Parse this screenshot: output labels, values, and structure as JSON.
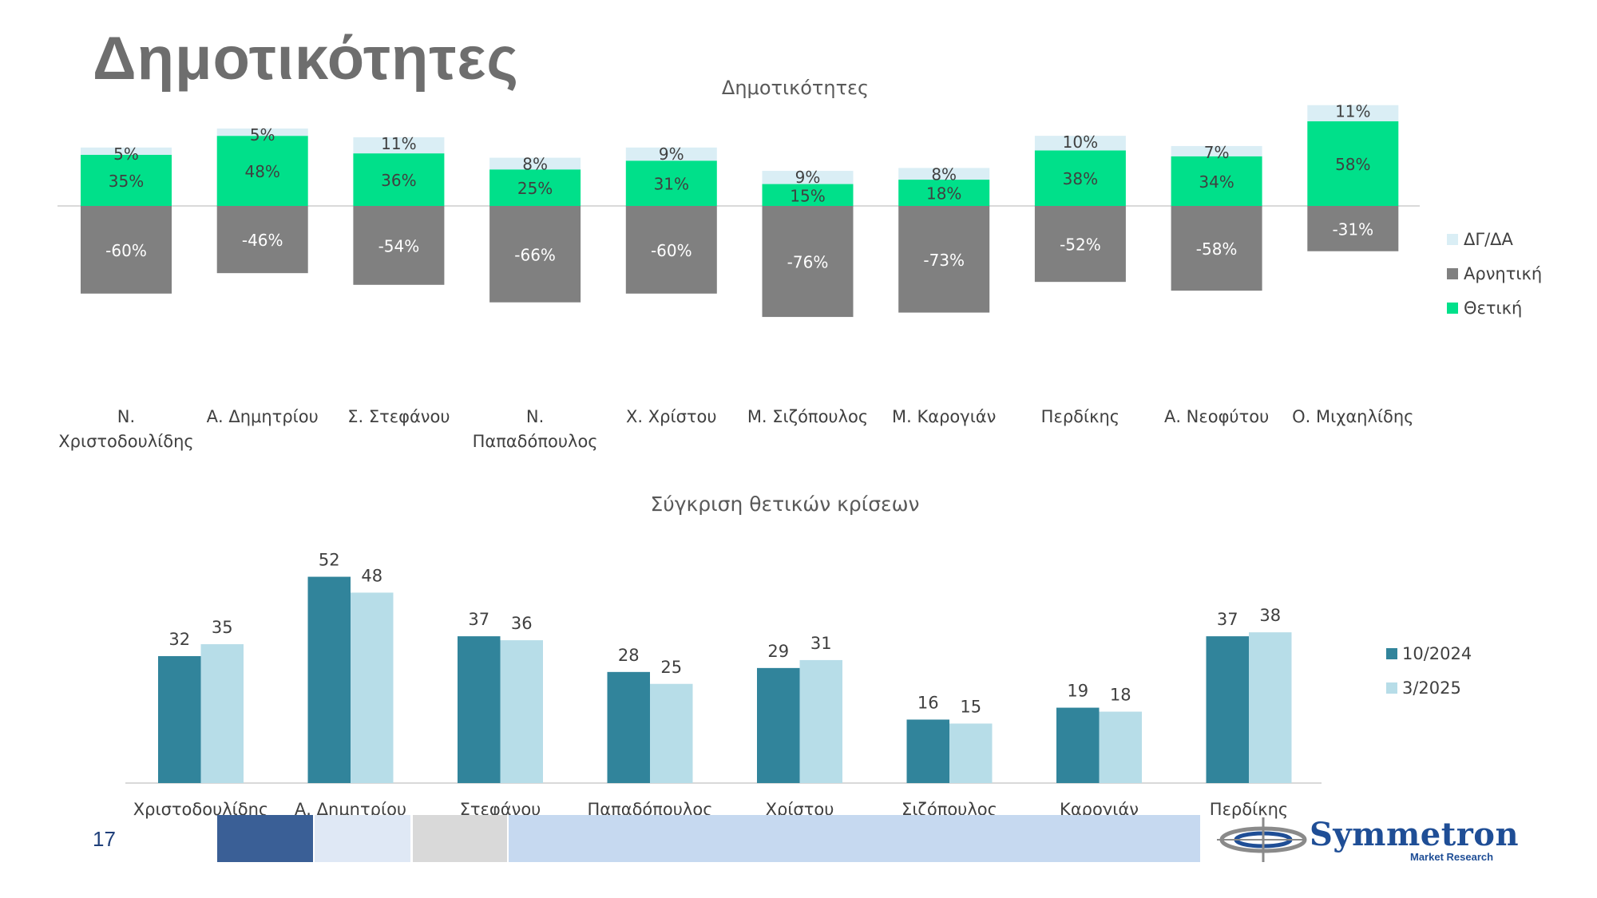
{
  "slide": {
    "title": "Δημοτικότητες",
    "page_number": "17",
    "logo": {
      "name": "Symmetron",
      "subtitle": "Market Research"
    }
  },
  "colors": {
    "positive": "#00e08a",
    "negative": "#808080",
    "dk": "#daeef5",
    "series_2024": "#31849b",
    "series_2025": "#b7dde8",
    "footer": [
      "#3a5f96",
      "#dfe8f5",
      "#d9d9d9",
      "#c6d9f0"
    ]
  },
  "chart_data": [
    {
      "type": "bar",
      "stacked": true,
      "title": "Δημοτικότητες",
      "categories": [
        [
          "Ν.",
          "Χριστοδουλίδης"
        ],
        [
          "Α. Δημητρίου"
        ],
        [
          "Σ. Στεφάνου"
        ],
        [
          "Ν.",
          "Παπαδόπουλος"
        ],
        [
          "Χ. Χρίστου"
        ],
        [
          "Μ. Σιζόπουλος"
        ],
        [
          "Μ. Καρογιάν"
        ],
        [
          "Περδίκης"
        ],
        [
          "Α. Νεοφύτου"
        ],
        [
          "Ο. Μιχαηλίδης"
        ]
      ],
      "series": [
        {
          "name": "ΔΓ/ΔΑ",
          "values": [
            5,
            5,
            11,
            8,
            9,
            9,
            8,
            10,
            7,
            11
          ],
          "labels": [
            "5%",
            "5%",
            "11%",
            "8%",
            "9%",
            "9%",
            "8%",
            "10%",
            "7%",
            "11%"
          ]
        },
        {
          "name": "Αρνητική",
          "values": [
            -60,
            -46,
            -54,
            -66,
            -60,
            -76,
            -73,
            -52,
            -58,
            -31
          ],
          "labels": [
            "-60%",
            "-46%",
            "-54%",
            "-66%",
            "-60%",
            "-76%",
            "-73%",
            "-52%",
            "-58%",
            "-31%"
          ]
        },
        {
          "name": "Θετική",
          "values": [
            35,
            48,
            36,
            25,
            31,
            15,
            18,
            38,
            34,
            58
          ],
          "labels": [
            "35%",
            "48%",
            "36%",
            "25%",
            "31%",
            "15%",
            "18%",
            "38%",
            "34%",
            "58%"
          ]
        }
      ],
      "legend_order": [
        "ΔΓ/ΔΑ",
        "Αρνητική",
        "Θετική"
      ],
      "legend_position": "right",
      "ylim": [
        -76,
        69
      ]
    },
    {
      "type": "bar",
      "title": "Σύγκριση θετικών κρίσεων",
      "categories": [
        "Χριστοδουλίδης",
        "Α. Δημητρίου",
        "Στεφάνου",
        "Παπαδόπουλος",
        "Χρίστου",
        "Σιζόπουλος",
        "Καρογιάν",
        "Περδίκης"
      ],
      "series": [
        {
          "name": "10/2024",
          "values": [
            32,
            52,
            37,
            28,
            29,
            16,
            19,
            37
          ]
        },
        {
          "name": "3/2025",
          "values": [
            35,
            48,
            36,
            25,
            31,
            15,
            18,
            38
          ]
        }
      ],
      "legend_position": "right",
      "ylim": [
        0,
        52
      ]
    }
  ]
}
